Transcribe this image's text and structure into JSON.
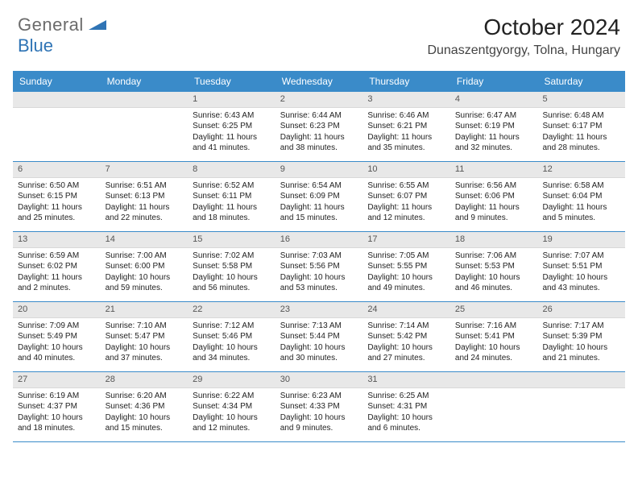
{
  "logo": {
    "text_gray": "General",
    "text_blue": "Blue"
  },
  "header": {
    "month_title": "October 2024",
    "location": "Dunaszentgyorgy, Tolna, Hungary"
  },
  "styling": {
    "header_bg": "#3a8bc9",
    "header_text": "#ffffff",
    "row_divider": "#3a8bc9",
    "daynum_bg": "#e8e8e8",
    "daynum_text": "#555555",
    "body_text": "#222222",
    "cell_fontsize": 10,
    "header_fontsize": 12,
    "title_fontsize": 28,
    "location_fontsize": 16,
    "page_bg": "#ffffff",
    "logo_gray": "#6b6b6b",
    "logo_blue": "#2f74b5"
  },
  "weekdays": [
    "Sunday",
    "Monday",
    "Tuesday",
    "Wednesday",
    "Thursday",
    "Friday",
    "Saturday"
  ],
  "weeks": [
    [
      null,
      null,
      {
        "n": "1",
        "sr": "Sunrise: 6:43 AM",
        "ss": "Sunset: 6:25 PM",
        "dl": "Daylight: 11 hours and 41 minutes."
      },
      {
        "n": "2",
        "sr": "Sunrise: 6:44 AM",
        "ss": "Sunset: 6:23 PM",
        "dl": "Daylight: 11 hours and 38 minutes."
      },
      {
        "n": "3",
        "sr": "Sunrise: 6:46 AM",
        "ss": "Sunset: 6:21 PM",
        "dl": "Daylight: 11 hours and 35 minutes."
      },
      {
        "n": "4",
        "sr": "Sunrise: 6:47 AM",
        "ss": "Sunset: 6:19 PM",
        "dl": "Daylight: 11 hours and 32 minutes."
      },
      {
        "n": "5",
        "sr": "Sunrise: 6:48 AM",
        "ss": "Sunset: 6:17 PM",
        "dl": "Daylight: 11 hours and 28 minutes."
      }
    ],
    [
      {
        "n": "6",
        "sr": "Sunrise: 6:50 AM",
        "ss": "Sunset: 6:15 PM",
        "dl": "Daylight: 11 hours and 25 minutes."
      },
      {
        "n": "7",
        "sr": "Sunrise: 6:51 AM",
        "ss": "Sunset: 6:13 PM",
        "dl": "Daylight: 11 hours and 22 minutes."
      },
      {
        "n": "8",
        "sr": "Sunrise: 6:52 AM",
        "ss": "Sunset: 6:11 PM",
        "dl": "Daylight: 11 hours and 18 minutes."
      },
      {
        "n": "9",
        "sr": "Sunrise: 6:54 AM",
        "ss": "Sunset: 6:09 PM",
        "dl": "Daylight: 11 hours and 15 minutes."
      },
      {
        "n": "10",
        "sr": "Sunrise: 6:55 AM",
        "ss": "Sunset: 6:07 PM",
        "dl": "Daylight: 11 hours and 12 minutes."
      },
      {
        "n": "11",
        "sr": "Sunrise: 6:56 AM",
        "ss": "Sunset: 6:06 PM",
        "dl": "Daylight: 11 hours and 9 minutes."
      },
      {
        "n": "12",
        "sr": "Sunrise: 6:58 AM",
        "ss": "Sunset: 6:04 PM",
        "dl": "Daylight: 11 hours and 5 minutes."
      }
    ],
    [
      {
        "n": "13",
        "sr": "Sunrise: 6:59 AM",
        "ss": "Sunset: 6:02 PM",
        "dl": "Daylight: 11 hours and 2 minutes."
      },
      {
        "n": "14",
        "sr": "Sunrise: 7:00 AM",
        "ss": "Sunset: 6:00 PM",
        "dl": "Daylight: 10 hours and 59 minutes."
      },
      {
        "n": "15",
        "sr": "Sunrise: 7:02 AM",
        "ss": "Sunset: 5:58 PM",
        "dl": "Daylight: 10 hours and 56 minutes."
      },
      {
        "n": "16",
        "sr": "Sunrise: 7:03 AM",
        "ss": "Sunset: 5:56 PM",
        "dl": "Daylight: 10 hours and 53 minutes."
      },
      {
        "n": "17",
        "sr": "Sunrise: 7:05 AM",
        "ss": "Sunset: 5:55 PM",
        "dl": "Daylight: 10 hours and 49 minutes."
      },
      {
        "n": "18",
        "sr": "Sunrise: 7:06 AM",
        "ss": "Sunset: 5:53 PM",
        "dl": "Daylight: 10 hours and 46 minutes."
      },
      {
        "n": "19",
        "sr": "Sunrise: 7:07 AM",
        "ss": "Sunset: 5:51 PM",
        "dl": "Daylight: 10 hours and 43 minutes."
      }
    ],
    [
      {
        "n": "20",
        "sr": "Sunrise: 7:09 AM",
        "ss": "Sunset: 5:49 PM",
        "dl": "Daylight: 10 hours and 40 minutes."
      },
      {
        "n": "21",
        "sr": "Sunrise: 7:10 AM",
        "ss": "Sunset: 5:47 PM",
        "dl": "Daylight: 10 hours and 37 minutes."
      },
      {
        "n": "22",
        "sr": "Sunrise: 7:12 AM",
        "ss": "Sunset: 5:46 PM",
        "dl": "Daylight: 10 hours and 34 minutes."
      },
      {
        "n": "23",
        "sr": "Sunrise: 7:13 AM",
        "ss": "Sunset: 5:44 PM",
        "dl": "Daylight: 10 hours and 30 minutes."
      },
      {
        "n": "24",
        "sr": "Sunrise: 7:14 AM",
        "ss": "Sunset: 5:42 PM",
        "dl": "Daylight: 10 hours and 27 minutes."
      },
      {
        "n": "25",
        "sr": "Sunrise: 7:16 AM",
        "ss": "Sunset: 5:41 PM",
        "dl": "Daylight: 10 hours and 24 minutes."
      },
      {
        "n": "26",
        "sr": "Sunrise: 7:17 AM",
        "ss": "Sunset: 5:39 PM",
        "dl": "Daylight: 10 hours and 21 minutes."
      }
    ],
    [
      {
        "n": "27",
        "sr": "Sunrise: 6:19 AM",
        "ss": "Sunset: 4:37 PM",
        "dl": "Daylight: 10 hours and 18 minutes."
      },
      {
        "n": "28",
        "sr": "Sunrise: 6:20 AM",
        "ss": "Sunset: 4:36 PM",
        "dl": "Daylight: 10 hours and 15 minutes."
      },
      {
        "n": "29",
        "sr": "Sunrise: 6:22 AM",
        "ss": "Sunset: 4:34 PM",
        "dl": "Daylight: 10 hours and 12 minutes."
      },
      {
        "n": "30",
        "sr": "Sunrise: 6:23 AM",
        "ss": "Sunset: 4:33 PM",
        "dl": "Daylight: 10 hours and 9 minutes."
      },
      {
        "n": "31",
        "sr": "Sunrise: 6:25 AM",
        "ss": "Sunset: 4:31 PM",
        "dl": "Daylight: 10 hours and 6 minutes."
      },
      null,
      null
    ]
  ]
}
